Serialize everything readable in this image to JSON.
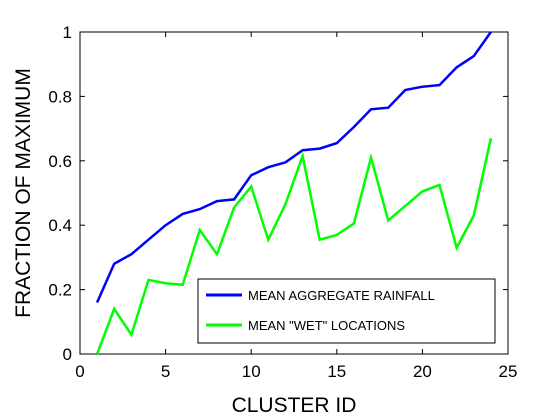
{
  "chart_data": {
    "type": "line",
    "title": "",
    "xlabel": "CLUSTER ID",
    "ylabel": "FRACTION OF MAXIMUM",
    "xlim": [
      0,
      25
    ],
    "ylim": [
      0,
      1
    ],
    "xticks": [
      "0",
      "5",
      "10",
      "15",
      "20",
      "25"
    ],
    "yticks": [
      "0",
      "0.2",
      "0.4",
      "0.6",
      "0.8",
      "1"
    ],
    "grid": false,
    "legend_position": "bottom-right",
    "x": [
      1,
      2,
      3,
      4,
      5,
      6,
      7,
      8,
      9,
      10,
      11,
      12,
      13,
      14,
      15,
      16,
      17,
      18,
      19,
      20,
      21,
      22,
      23,
      24
    ],
    "series": [
      {
        "name": "MEAN AGGREGATE RAINFALL",
        "color": "#0000ff",
        "values": [
          0.16,
          0.28,
          0.31,
          0.355,
          0.4,
          0.435,
          0.45,
          0.475,
          0.48,
          0.555,
          0.58,
          0.595,
          0.633,
          0.638,
          0.655,
          0.705,
          0.76,
          0.765,
          0.82,
          0.83,
          0.835,
          0.89,
          0.925,
          1.0
        ]
      },
      {
        "name": "MEAN \"WET\" LOCATIONS",
        "color": "#00ff00",
        "values": [
          0.0,
          0.14,
          0.06,
          0.23,
          0.22,
          0.215,
          0.385,
          0.31,
          0.455,
          0.52,
          0.355,
          0.465,
          0.615,
          0.355,
          0.37,
          0.405,
          0.61,
          0.415,
          0.46,
          0.505,
          0.525,
          0.33,
          0.43,
          0.67
        ]
      }
    ]
  }
}
